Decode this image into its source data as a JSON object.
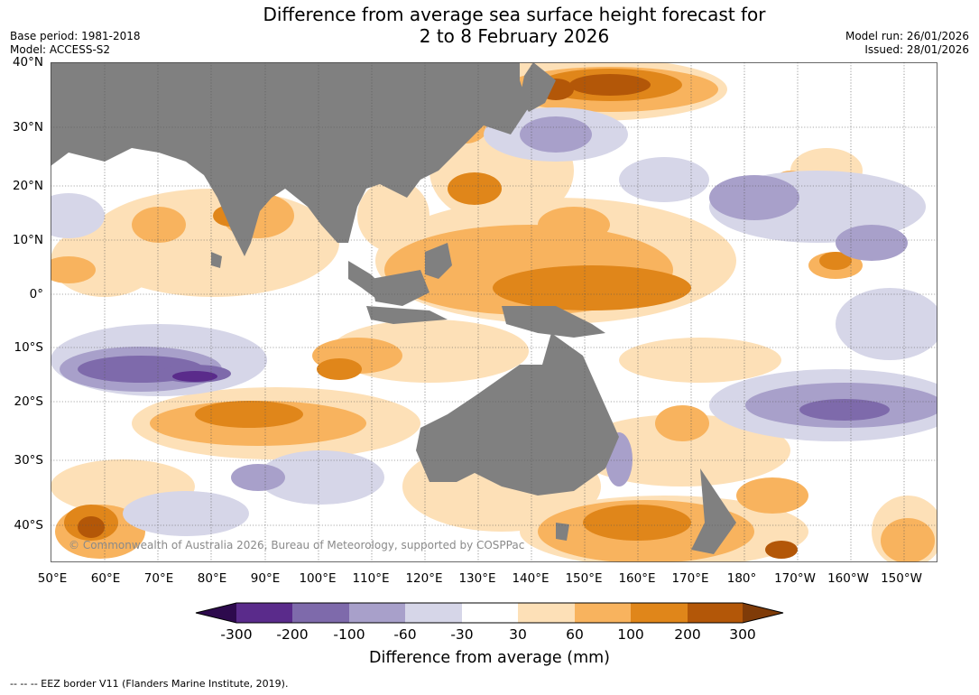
{
  "title": {
    "line1": "Difference from average sea surface height forecast for",
    "line2": "2 to 8 February 2026"
  },
  "meta": {
    "base_period": "Base period: 1981-2018",
    "model": "Model: ACCESS-S2",
    "model_run": "Model run: 26/01/2026",
    "issued": "Issued: 28/01/2026"
  },
  "map": {
    "lat_labels": [
      "40°N",
      "30°N",
      "20°N",
      "10°N",
      "0°",
      "10°S",
      "20°S",
      "30°S",
      "40°S"
    ],
    "lon_labels": [
      "50°E",
      "60°E",
      "70°E",
      "80°E",
      "90°E",
      "100°E",
      "110°E",
      "120°E",
      "130°E",
      "140°E",
      "150°E",
      "160°E",
      "170°E",
      "180°",
      "170°W",
      "160°W",
      "150°W"
    ],
    "copyright": "© Commonwealth of Australia 2026, Bureau of Meteorology, supported by COSPPac",
    "colors": {
      "land": "#808080",
      "grid": "#555555",
      "levels": [
        "#2d0a4d",
        "#5a2b8b",
        "#7e6aab",
        "#a8a0ca",
        "#d6d6e8",
        "#ffffff",
        "#fde0b7",
        "#f8b35e",
        "#e0861a",
        "#b35708",
        "#7f3b08"
      ]
    }
  },
  "colorbar": {
    "ticks": [
      "-300",
      "-200",
      "-100",
      "-60",
      "-30",
      "30",
      "60",
      "100",
      "200",
      "300"
    ],
    "label": "Difference from average (mm)"
  },
  "footer": "-- -- -- EEZ border V11 (Flanders Marine Institute, 2019)."
}
